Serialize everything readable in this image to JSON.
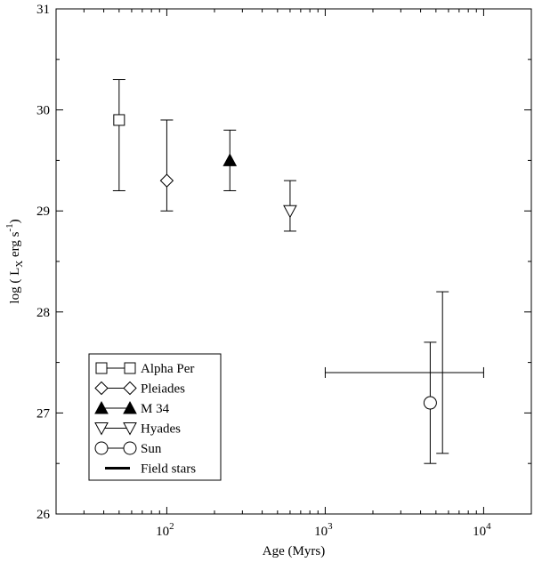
{
  "chart_data": {
    "type": "scatter",
    "title": "",
    "xlabel": "Age (Myrs)",
    "ylabel_main": "log ( L",
    "ylabel_sub": "X",
    "ylabel_rest": " erg s",
    "ylabel_sup": "-1",
    "ylabel_end": ")",
    "xscale": "log",
    "xlim": [
      20,
      20000
    ],
    "ylim": [
      26,
      31
    ],
    "grid": false,
    "legend_position": "bottom-left",
    "x_ticks": [
      {
        "value": 100,
        "base": "10",
        "exp": "2"
      },
      {
        "value": 1000,
        "base": "10",
        "exp": "3"
      },
      {
        "value": 10000,
        "base": "10",
        "exp": "4"
      }
    ],
    "y_ticks": [
      {
        "value": 26,
        "label": "26"
      },
      {
        "value": 27,
        "label": "27"
      },
      {
        "value": 28,
        "label": "28"
      },
      {
        "value": 29,
        "label": "29"
      },
      {
        "value": 30,
        "label": "30"
      },
      {
        "value": 31,
        "label": "31"
      }
    ],
    "series": [
      {
        "name": "Alpha Per",
        "marker": "square",
        "filled": false,
        "x": 50,
        "y": 29.9,
        "yerr": [
          29.2,
          30.3
        ]
      },
      {
        "name": "Pleiades",
        "marker": "diamond",
        "filled": false,
        "x": 100,
        "y": 29.3,
        "yerr": [
          29.0,
          29.9
        ]
      },
      {
        "name": "M 34",
        "marker": "triangle-up",
        "filled": true,
        "x": 250,
        "y": 29.5,
        "yerr": [
          29.2,
          29.8
        ]
      },
      {
        "name": "Hyades",
        "marker": "triangle-down",
        "filled": false,
        "x": 600,
        "y": 29.0,
        "yerr": [
          28.8,
          29.3
        ]
      },
      {
        "name": "Sun",
        "marker": "circle",
        "filled": false,
        "x": 4600,
        "y": 27.1,
        "yerr": [
          26.5,
          27.7
        ]
      },
      {
        "name": "Field stars",
        "marker": "none",
        "filled": false,
        "x": 5500,
        "y": 27.4,
        "yerr": [
          26.6,
          28.2
        ],
        "xerr": [
          1000,
          10000
        ]
      }
    ]
  }
}
